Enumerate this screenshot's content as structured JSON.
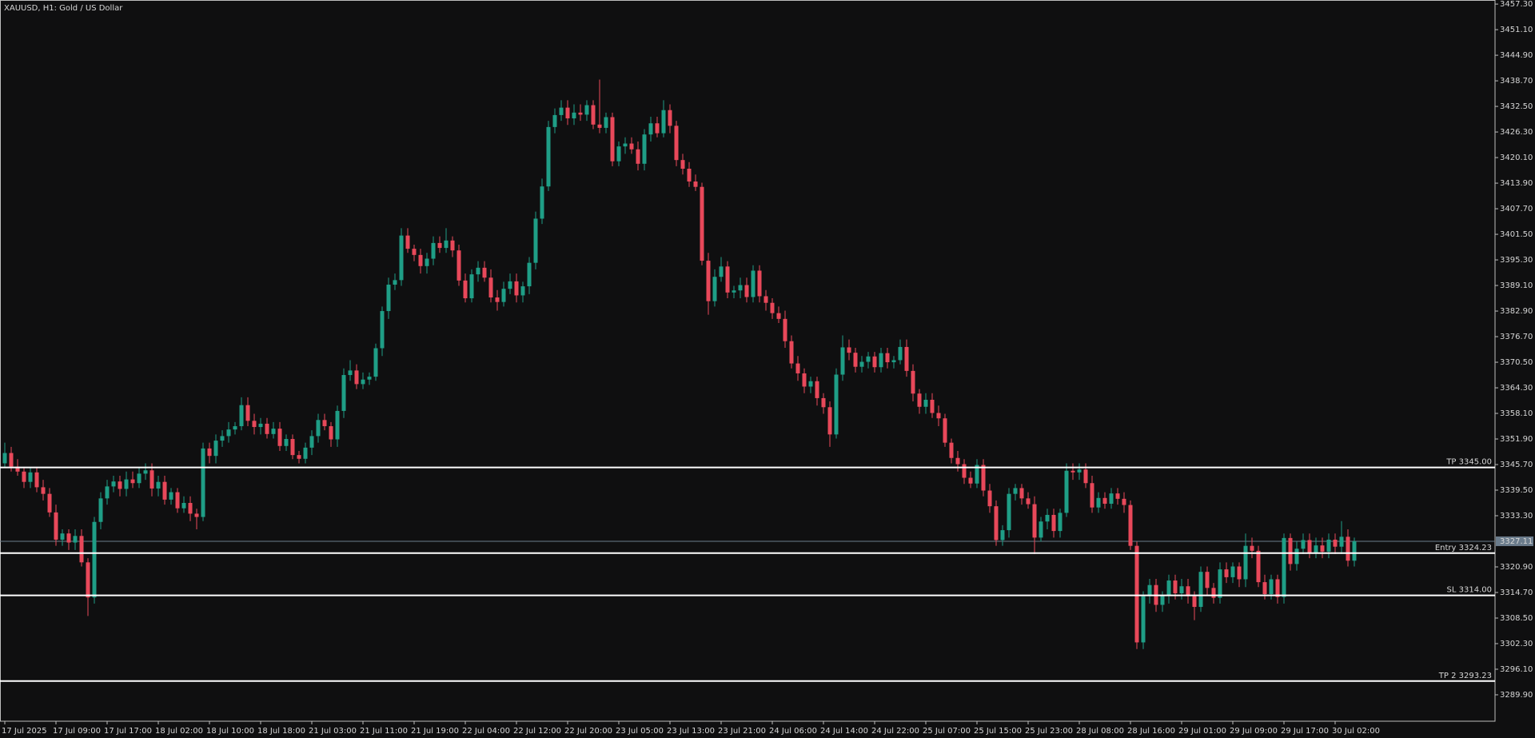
{
  "chart_data": {
    "type": "candlestick",
    "title": "XAUUSD, H1:  Gold / US Dollar",
    "up_color": "#1f9e86",
    "down_color": "#e8485a",
    "x": [
      "17 Jul 2025",
      null,
      null,
      null,
      null,
      null,
      null,
      null,
      "17 Jul 09:00",
      null,
      null,
      null,
      null,
      null,
      null,
      null,
      "17 Jul 17:00",
      null,
      null,
      null,
      null,
      null,
      null,
      null,
      "18 Jul 02:00",
      null,
      null,
      null,
      null,
      null,
      null,
      null,
      "18 Jul 10:00",
      null,
      null,
      null,
      null,
      null,
      null,
      null,
      "18 Jul 18:00",
      null,
      null,
      null,
      null,
      null,
      null,
      null,
      "21 Jul 03:00",
      null,
      null,
      null,
      null,
      null,
      null,
      null,
      "21 Jul 11:00",
      null,
      null,
      null,
      null,
      null,
      null,
      null,
      "21 Jul 19:00",
      null,
      null,
      null,
      null,
      null,
      null,
      null,
      "22 Jul 04:00",
      null,
      null,
      null,
      null,
      null,
      null,
      null,
      "22 Jul 12:00",
      null,
      null,
      null,
      null,
      null,
      null,
      null,
      "22 Jul 20:00",
      null,
      null,
      null,
      null,
      null,
      null,
      null,
      "23 Jul 05:00",
      null,
      null,
      null,
      null,
      null,
      null,
      null,
      "23 Jul 13:00",
      null,
      null,
      null,
      null,
      null,
      null,
      null,
      "23 Jul 21:00",
      null,
      null,
      null,
      null,
      null,
      null,
      null,
      "24 Jul 06:00",
      null,
      null,
      null,
      null,
      null,
      null,
      null,
      "24 Jul 14:00",
      null,
      null,
      null,
      null,
      null,
      null,
      null,
      "24 Jul 22:00",
      null,
      null,
      null,
      null,
      null,
      null,
      null,
      "25 Jul 07:00",
      null,
      null,
      null,
      null,
      null,
      null,
      null,
      "25 Jul 15:00",
      null,
      null,
      null,
      null,
      null,
      null,
      null,
      "25 Jul 23:00",
      null,
      null,
      null,
      null,
      null,
      null,
      null,
      "28 Jul 08:00",
      null,
      null,
      null,
      null,
      null,
      null,
      null,
      "28 Jul 16:00",
      null,
      null,
      null,
      null,
      null,
      null,
      null,
      "29 Jul 01:00",
      null,
      null,
      null,
      null,
      null,
      null,
      null,
      "29 Jul 09:00",
      null,
      null,
      null,
      null,
      null,
      null,
      null,
      "29 Jul 17:00",
      null,
      null,
      null,
      null,
      null,
      null,
      null,
      "30 Jul 02:00",
      null,
      null,
      null
    ],
    "open": [
      3346.0,
      3348.5,
      3345.2,
      3344.0,
      3341.5,
      3343.8,
      3340.2,
      3338.6,
      3334.1,
      3327.5,
      3329.0,
      3326.8,
      3328.4,
      3322.0,
      3313.5,
      3331.8,
      3337.5,
      3340.4,
      3341.6,
      3339.8,
      3342.1,
      3341.2,
      3343.5,
      3344.3,
      3339.9,
      3341.5,
      3337.2,
      3339.0,
      3335.1,
      3336.4,
      3333.8,
      3333.0,
      3349.6,
      3347.8,
      3351.5,
      3352.6,
      3354.2,
      3355.0,
      3360.1,
      3356.3,
      3354.8,
      3355.6,
      3353.1,
      3354.4,
      3350.2,
      3351.9,
      3348.0,
      3347.1,
      3349.8,
      3352.6,
      3356.5,
      3355.0,
      3351.8,
      3358.7,
      3367.4,
      3368.5,
      3365.2,
      3366.3,
      3367.0,
      3373.9,
      3382.9,
      3389.3,
      3390.4,
      3401.2,
      3398.0,
      3396.5,
      3393.8,
      3395.6,
      3399.4,
      3398.2,
      3400.0,
      3397.6,
      3390.3,
      3386.0,
      3391.8,
      3393.4,
      3391.0,
      3386.2,
      3385.1,
      3388.3,
      3390.1,
      3386.7,
      3388.9,
      3394.6,
      3405.3,
      3413.1,
      3427.5,
      3430.4,
      3432.2,
      3429.6,
      3431.0,
      3430.5,
      3432.8,
      3428.1,
      3427.3,
      3429.9,
      3419.2,
      3422.8,
      3423.5,
      3422.1,
      3418.6,
      3425.7,
      3428.4,
      3426.0,
      3431.6,
      3427.8,
      3419.5,
      3417.4,
      3414.3,
      3413.0,
      3395.1,
      3385.3,
      3391.2,
      3393.7,
      3387.4,
      3387.9,
      3389.2,
      3386.3,
      3392.7,
      3386.5,
      3384.9,
      3382.4,
      3381.0,
      3375.6,
      3370.2,
      3367.8,
      3364.6,
      3365.9,
      3361.8,
      3359.6,
      3353.0,
      3367.5,
      3374.1,
      3372.8,
      3369.4,
      3370.6,
      3371.9,
      3369.3,
      3372.7,
      3370.5,
      3371.0,
      3374.2,
      3368.4,
      3362.9,
      3359.7,
      3361.4,
      3358.2,
      3356.9,
      3351.0,
      3347.3,
      3345.8,
      3342.5,
      3341.1,
      3345.6,
      3339.4,
      3335.6,
      3327.4,
      3329.8,
      3338.6,
      3340.0,
      3337.5,
      3336.1,
      3328.0,
      3331.9,
      3333.5,
      3329.6,
      3334.0,
      3344.2,
      3343.8,
      3344.5,
      3341.2,
      3335.3,
      3337.6,
      3336.2,
      3338.7,
      3337.4,
      3335.9,
      3326.0,
      3302.6,
      3313.8,
      3316.5,
      3311.7,
      3313.9,
      3317.6,
      3314.5,
      3316.2,
      3313.8,
      3311.2,
      3319.7,
      3315.8,
      3313.4,
      3320.3,
      3318.4,
      3321.0,
      3317.9,
      3326.0,
      3324.8,
      3317.2,
      3314.3,
      3317.9,
      3313.6,
      3327.9,
      3321.6,
      3325.3,
      3327.4,
      3324.2,
      3326.1,
      3324.6,
      3327.5,
      3325.8,
      3328.2,
      3322.4
    ],
    "high": [
      3351,
      3350,
      3347,
      3345,
      3345,
      3345,
      3342,
      3340,
      3336,
      3330,
      3330,
      3330,
      3330,
      3323,
      3333,
      3339,
      3342,
      3343,
      3343,
      3344,
      3344,
      3345,
      3346,
      3346,
      3343,
      3343,
      3340,
      3340,
      3338,
      3338,
      3335,
      3351,
      3351,
      3353,
      3354,
      3356,
      3356,
      3362,
      3362,
      3358,
      3357,
      3357,
      3356,
      3356,
      3353,
      3353,
      3349,
      3351,
      3354,
      3358,
      3358,
      3356,
      3360,
      3369,
      3371,
      3370,
      3368,
      3368,
      3375,
      3384,
      3391,
      3392,
      3403,
      3403,
      3399,
      3398,
      3397,
      3401,
      3401,
      3403,
      3401,
      3399,
      3392,
      3393,
      3395,
      3395,
      3393,
      3388,
      3390,
      3392,
      3392,
      3390,
      3396,
      3407,
      3415,
      3429,
      3432,
      3434,
      3434,
      3433,
      3433,
      3434,
      3434,
      3439,
      3431,
      3431,
      3424,
      3425,
      3425,
      3424,
      3427,
      3430,
      3430,
      3434,
      3433,
      3429,
      3421,
      3419,
      3416,
      3414,
      3397,
      3393,
      3396,
      3395,
      3389,
      3391,
      3391,
      3394,
      3394,
      3388,
      3386,
      3384,
      3383,
      3377,
      3372,
      3369,
      3367,
      3367,
      3363,
      3361,
      3369,
      3377,
      3376,
      3374,
      3372,
      3373,
      3373,
      3374,
      3374,
      3372,
      3376,
      3376,
      3370,
      3364,
      3363,
      3363,
      3360,
      3358,
      3352,
      3349,
      3347,
      3344,
      3347,
      3347,
      3341,
      3337,
      3331,
      3340,
      3341,
      3341,
      3339,
      3338,
      3333,
      3335,
      3335,
      3335,
      3346,
      3346,
      3346,
      3346,
      3343,
      3339,
      3339,
      3340,
      3340,
      3339,
      3337,
      3327,
      3315,
      3318,
      3318,
      3315,
      3319,
      3319,
      3318,
      3318,
      3315,
      3321,
      3321,
      3317,
      3322,
      3322,
      3322,
      3322,
      3329,
      3328,
      3326,
      3319,
      3319,
      3319,
      3329,
      3329,
      3327,
      3329,
      3329,
      3328,
      3328,
      3329,
      3329,
      3332,
      3330,
      3328
    ],
    "low": [
      3345,
      3344,
      3343,
      3340,
      3340,
      3339,
      3337,
      3333,
      3326,
      3326,
      3325,
      3325,
      3321,
      3309,
      3312,
      3330,
      3336,
      3339,
      3338,
      3338,
      3340,
      3340,
      3342,
      3338,
      3338,
      3336,
      3336,
      3334,
      3334,
      3332,
      3330,
      3332,
      3346,
      3346,
      3350,
      3351,
      3353,
      3354,
      3355,
      3353,
      3353,
      3352,
      3352,
      3349,
      3349,
      3347,
      3346,
      3346,
      3348,
      3351,
      3354,
      3350,
      3350,
      3357,
      3366,
      3364,
      3364,
      3365,
      3366,
      3372,
      3381,
      3388,
      3389,
      3397,
      3395,
      3392,
      3392,
      3394,
      3397,
      3397,
      3396,
      3389,
      3385,
      3385,
      3390,
      3390,
      3385,
      3383,
      3384,
      3387,
      3385,
      3385,
      3387,
      3393,
      3404,
      3412,
      3426,
      3429,
      3428,
      3428,
      3429,
      3429,
      3427,
      3426,
      3426,
      3418,
      3418,
      3421,
      3421,
      3417,
      3417,
      3424,
      3425,
      3425,
      3426,
      3418,
      3416,
      3413,
      3412,
      3394,
      3382,
      3384,
      3390,
      3386,
      3386,
      3386,
      3385,
      3385,
      3385,
      3383,
      3381,
      3380,
      3374,
      3369,
      3366,
      3363,
      3363,
      3360,
      3358,
      3350,
      3352,
      3366,
      3371,
      3368,
      3368,
      3369,
      3368,
      3368,
      3369,
      3369,
      3370,
      3367,
      3361,
      3358,
      3358,
      3357,
      3355,
      3350,
      3346,
      3344,
      3341,
      3340,
      3340,
      3338,
      3334,
      3326,
      3326,
      3328,
      3337,
      3336,
      3335,
      3324,
      3327,
      3330,
      3328,
      3328,
      3333,
      3342,
      3342,
      3340,
      3334,
      3334,
      3335,
      3335,
      3336,
      3334,
      3325,
      3301,
      3301,
      3312,
      3310,
      3310,
      3312,
      3313,
      3313,
      3312,
      3308,
      3310,
      3314,
      3312,
      3312,
      3317,
      3317,
      3316,
      3316,
      3323,
      3316,
      3313,
      3313,
      3312,
      3312,
      3320,
      3320,
      3324,
      3323,
      3323,
      3323,
      3323,
      3324,
      3324,
      3321,
      3321
    ],
    "close": [
      3348.5,
      3345.2,
      3344.0,
      3341.5,
      3343.8,
      3340.2,
      3338.6,
      3334.1,
      3327.5,
      3329.0,
      3326.8,
      3328.4,
      3322.0,
      3313.5,
      3331.8,
      3337.5,
      3340.4,
      3341.6,
      3339.8,
      3342.1,
      3341.2,
      3343.5,
      3344.3,
      3339.9,
      3341.5,
      3337.2,
      3339.0,
      3335.1,
      3336.4,
      3333.8,
      3333.0,
      3349.6,
      3347.8,
      3351.5,
      3352.6,
      3354.2,
      3355.0,
      3360.1,
      3356.3,
      3354.8,
      3355.6,
      3353.1,
      3354.4,
      3350.2,
      3351.9,
      3348.0,
      3347.1,
      3349.8,
      3352.6,
      3356.5,
      3355.0,
      3351.8,
      3358.7,
      3367.4,
      3368.5,
      3365.2,
      3366.3,
      3367.0,
      3373.9,
      3382.9,
      3389.3,
      3390.4,
      3401.2,
      3398.0,
      3396.5,
      3393.8,
      3395.6,
      3399.4,
      3398.2,
      3400.0,
      3397.6,
      3390.3,
      3386.0,
      3391.8,
      3393.4,
      3391.0,
      3386.2,
      3385.1,
      3388.3,
      3390.1,
      3386.7,
      3388.9,
      3394.6,
      3405.3,
      3413.1,
      3427.5,
      3430.4,
      3432.2,
      3429.6,
      3431.0,
      3430.5,
      3432.8,
      3428.1,
      3427.3,
      3429.9,
      3419.2,
      3422.8,
      3423.5,
      3422.1,
      3418.6,
      3425.7,
      3428.4,
      3426.0,
      3431.6,
      3427.8,
      3419.5,
      3417.4,
      3414.3,
      3413.0,
      3395.1,
      3385.3,
      3391.2,
      3393.7,
      3387.4,
      3387.9,
      3389.2,
      3386.3,
      3392.7,
      3386.5,
      3384.9,
      3382.4,
      3381.0,
      3375.6,
      3370.2,
      3367.8,
      3364.6,
      3365.9,
      3361.8,
      3359.6,
      3353.0,
      3367.5,
      3374.1,
      3372.8,
      3369.4,
      3370.6,
      3371.9,
      3369.3,
      3372.7,
      3370.5,
      3371.0,
      3374.2,
      3368.4,
      3362.9,
      3359.7,
      3361.4,
      3358.2,
      3356.9,
      3351.0,
      3347.3,
      3345.8,
      3342.5,
      3341.1,
      3345.6,
      3339.4,
      3335.6,
      3327.4,
      3329.8,
      3338.6,
      3340.0,
      3337.5,
      3336.1,
      3328.0,
      3331.9,
      3333.5,
      3329.6,
      3334.0,
      3344.2,
      3343.8,
      3344.5,
      3341.2,
      3335.3,
      3337.6,
      3336.2,
      3338.7,
      3337.4,
      3335.9,
      3326.0,
      3302.6,
      3313.8,
      3316.5,
      3311.7,
      3313.9,
      3317.6,
      3314.5,
      3316.2,
      3313.8,
      3311.2,
      3319.7,
      3315.8,
      3313.4,
      3320.3,
      3318.4,
      3321.0,
      3317.9,
      3326.0,
      3324.8,
      3317.2,
      3314.3,
      3317.9,
      3313.6,
      3327.9,
      3321.6,
      3325.3,
      3327.4,
      3324.2,
      3326.1,
      3324.6,
      3327.5,
      3325.8,
      3328.2,
      3322.4,
      3327.11
    ],
    "ylim": [
      3283.5,
      3457.9
    ],
    "yticks": [
      {
        "value": 3457.3,
        "label": "3457.30"
      },
      {
        "value": 3451.1,
        "label": "3451.10"
      },
      {
        "value": 3444.9,
        "label": "3444.90"
      },
      {
        "value": 3438.7,
        "label": "3438.70"
      },
      {
        "value": 3432.5,
        "label": "3432.50"
      },
      {
        "value": 3426.3,
        "label": "3426.30"
      },
      {
        "value": 3420.1,
        "label": "3420.10"
      },
      {
        "value": 3413.9,
        "label": "3413.90"
      },
      {
        "value": 3407.7,
        "label": "3407.70"
      },
      {
        "value": 3401.5,
        "label": "3401.50"
      },
      {
        "value": 3395.3,
        "label": "3395.30"
      },
      {
        "value": 3389.1,
        "label": "3389.10"
      },
      {
        "value": 3382.9,
        "label": "3382.90"
      },
      {
        "value": 3376.7,
        "label": "3376.70"
      },
      {
        "value": 3370.5,
        "label": "3370.50"
      },
      {
        "value": 3364.3,
        "label": "3364.30"
      },
      {
        "value": 3358.1,
        "label": "3358.10"
      },
      {
        "value": 3351.9,
        "label": "3351.90"
      },
      {
        "value": 3345.7,
        "label": "3345.70"
      },
      {
        "value": 3339.5,
        "label": "3339.50"
      },
      {
        "value": 3333.3,
        "label": "3333.30"
      },
      {
        "value": 3320.9,
        "label": "3320.90"
      },
      {
        "value": 3314.7,
        "label": "3314.70"
      },
      {
        "value": 3308.5,
        "label": "3308.50"
      },
      {
        "value": 3302.3,
        "label": "3302.30"
      },
      {
        "value": 3296.1,
        "label": "3296.10"
      },
      {
        "value": 3289.9,
        "label": "3289.90"
      }
    ],
    "levels": [
      {
        "value": 3345.0,
        "label": "TP 3345.00"
      },
      {
        "value": 3324.23,
        "label": "Entry 3324.23"
      },
      {
        "value": 3314.0,
        "label": "SL 3314.00"
      },
      {
        "value": 3293.23,
        "label": "TP 2 3293.23"
      }
    ],
    "current_price": 3327.11
  }
}
